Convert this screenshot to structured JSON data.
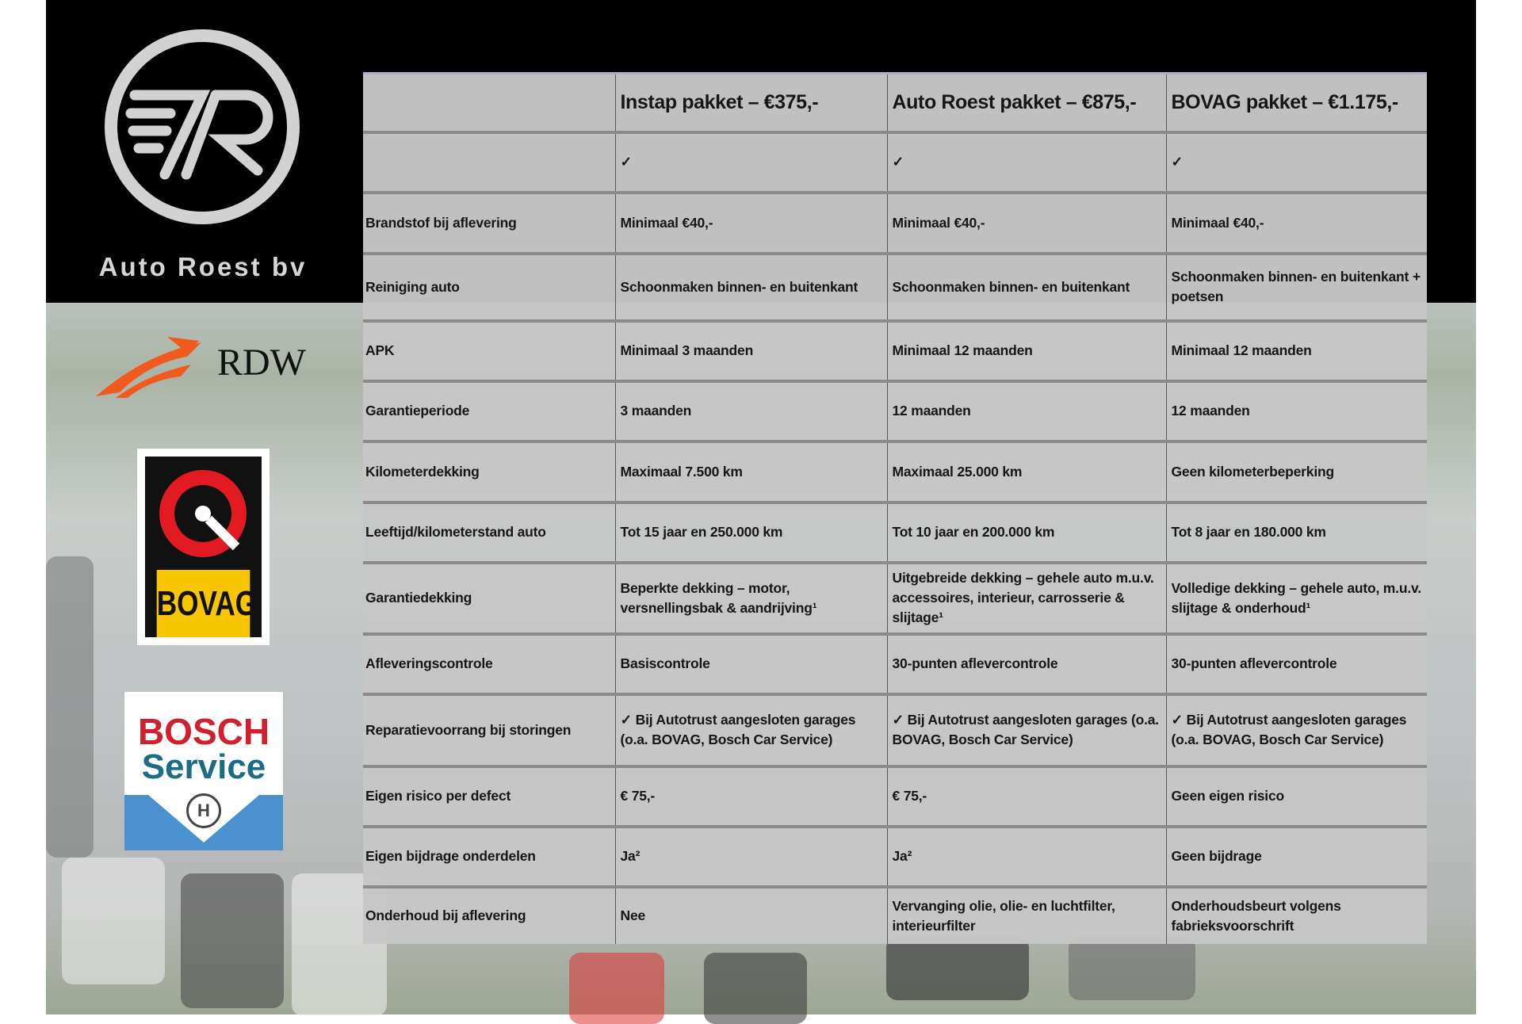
{
  "brand": {
    "name": "Auto Roest bv",
    "logo_letters": "7R"
  },
  "logos": {
    "rdw": "RDW",
    "bovag": "BOVAG",
    "bosch_line1": "BOSCH",
    "bosch_line2": "Service"
  },
  "table": {
    "headers": [
      "",
      "Instap pakket – €375,-",
      "Auto Roest pakket – €875,-",
      "BOVAG pakket – €1.175,-"
    ],
    "rows": [
      [
        "",
        "✓",
        "✓",
        "✓"
      ],
      [
        "Brandstof bij aflevering",
        "Minimaal €40,-",
        "Minimaal €40,-",
        "Minimaal €40,-"
      ],
      [
        "Reiniging auto",
        "Schoonmaken binnen- en buitenkant",
        "Schoonmaken binnen- en buitenkant",
        "Schoonmaken binnen- en buitenkant + poetsen"
      ],
      [
        "APK",
        "Minimaal 3 maanden",
        "Minimaal 12 maanden",
        "Minimaal 12 maanden"
      ],
      [
        "Garantieperiode",
        "3 maanden",
        "12 maanden",
        "12 maanden"
      ],
      [
        "Kilometerdekking",
        "Maximaal 7.500 km",
        "Maximaal 25.000 km",
        "Geen kilometerbeperking"
      ],
      [
        "Leeftijd/kilometerstand auto",
        "Tot 15 jaar en 250.000 km",
        "Tot 10 jaar en 200.000 km",
        "Tot 8 jaar en 180.000 km"
      ],
      [
        "Garantiedekking",
        "Beperkte dekking – motor, versnellingsbak & aandrijving¹",
        "Uitgebreide dekking – gehele auto m.u.v. accessoires, interieur, carrosserie & slijtage¹",
        "Volledige dekking – gehele auto, m.u.v. slijtage & onderhoud¹"
      ],
      [
        "Afleveringscontrole",
        "Basiscontrole",
        "30-punten aflevercontrole",
        "30-punten aflevercontrole"
      ],
      [
        "Reparatievoorrang bij storingen",
        "✓ Bij Autotrust aangesloten garages (o.a. BOVAG, Bosch Car Service)",
        "✓ Bij Autotrust aangesloten garages (o.a. BOVAG, Bosch Car Service)",
        "✓ Bij Autotrust aangesloten garages (o.a. BOVAG, Bosch Car Service)"
      ],
      [
        "Eigen risico per defect",
        "€ 75,-",
        "€ 75,-",
        "Geen eigen risico"
      ],
      [
        "Eigen bijdrage onderdelen",
        "Ja²",
        "Ja²",
        "Geen bijdrage"
      ],
      [
        "Onderhoud bij aflevering",
        "Nee",
        "Vervanging olie, olie- en luchtfilter, interieurfilter",
        "Onderhoudsbeurt volgens fabrieksvoorschrift"
      ]
    ]
  },
  "colors": {
    "rdw_orange": "#f15a1f",
    "bovag_yellow": "#f7c600",
    "bosch_red": "#d0202e",
    "bosch_blue": "#4a92cf"
  }
}
